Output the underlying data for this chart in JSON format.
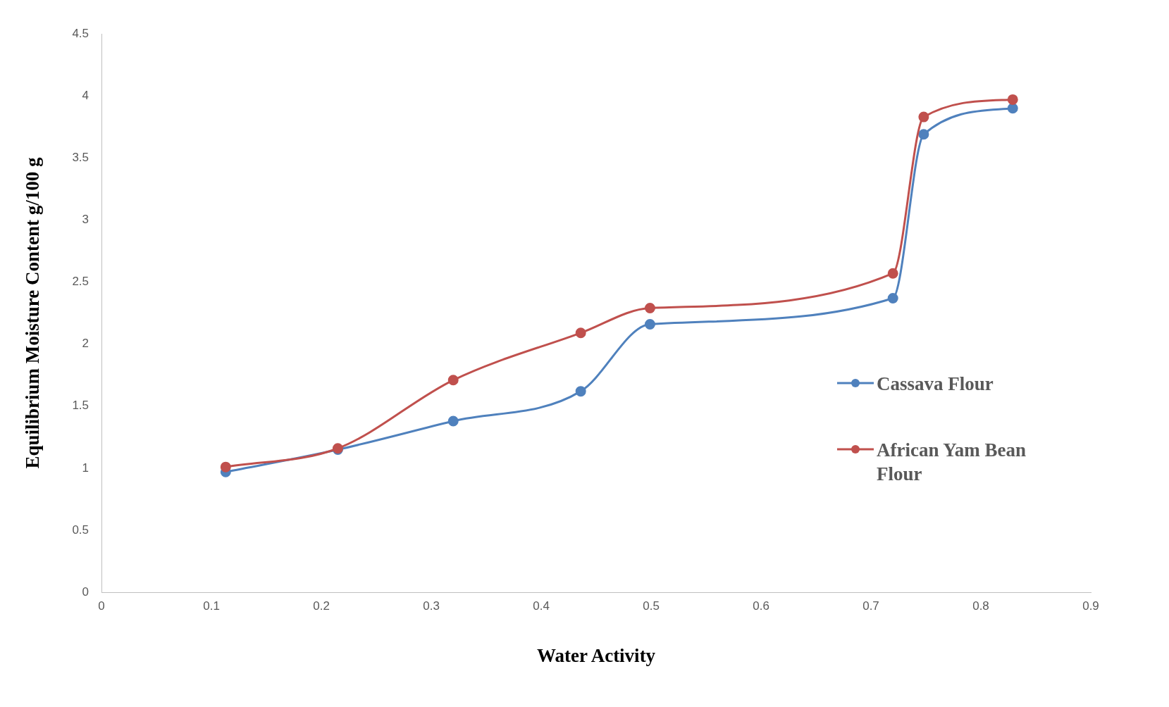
{
  "chart_data": {
    "type": "line",
    "xlabel": "Water Activity",
    "ylabel": "Equilibrium Moisture Content g/100 g",
    "xlim": [
      0,
      0.9
    ],
    "xticks": [
      0,
      0.1,
      0.2,
      0.3,
      0.4,
      0.5,
      0.6,
      0.7,
      0.8,
      0.9
    ],
    "ylim": [
      0,
      4.5
    ],
    "yticks": [
      0,
      0.5,
      1,
      1.5,
      2,
      2.5,
      3,
      3.5,
      4,
      4.5
    ],
    "grid": false,
    "legend": "right",
    "marker": "circle",
    "line_style": "solid",
    "x": [
      0.113,
      0.215,
      0.32,
      0.436,
      0.499,
      0.72,
      0.748,
      0.829
    ],
    "series": [
      {
        "name": "Cassava Flour",
        "color": "#4f81bd",
        "values": [
          0.97,
          1.15,
          1.38,
          1.62,
          2.16,
          2.37,
          3.69,
          3.9
        ]
      },
      {
        "name": "African Yam Bean Flour",
        "color": "#c0504d",
        "values": [
          1.01,
          1.16,
          1.71,
          2.09,
          2.29,
          2.57,
          3.83,
          3.97
        ]
      }
    ]
  }
}
